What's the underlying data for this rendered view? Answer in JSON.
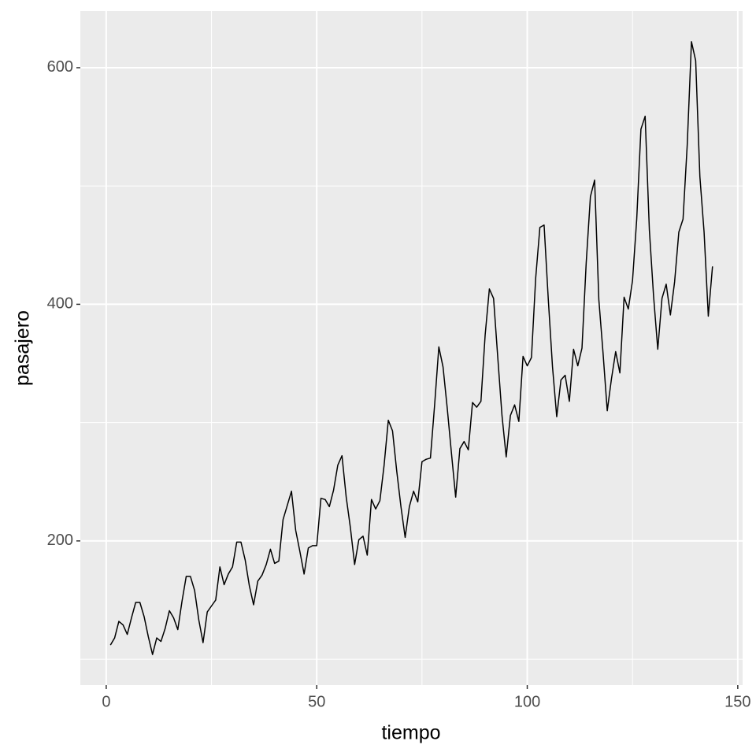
{
  "chart_data": {
    "type": "line",
    "x_label": "tiempo",
    "y_label": "pasajero",
    "x": [
      1,
      2,
      3,
      4,
      5,
      6,
      7,
      8,
      9,
      10,
      11,
      12,
      13,
      14,
      15,
      16,
      17,
      18,
      19,
      20,
      21,
      22,
      23,
      24,
      25,
      26,
      27,
      28,
      29,
      30,
      31,
      32,
      33,
      34,
      35,
      36,
      37,
      38,
      39,
      40,
      41,
      42,
      43,
      44,
      45,
      46,
      47,
      48,
      49,
      50,
      51,
      52,
      53,
      54,
      55,
      56,
      57,
      58,
      59,
      60,
      61,
      62,
      63,
      64,
      65,
      66,
      67,
      68,
      69,
      70,
      71,
      72,
      73,
      74,
      75,
      76,
      77,
      78,
      79,
      80,
      81,
      82,
      83,
      84,
      85,
      86,
      87,
      88,
      89,
      90,
      91,
      92,
      93,
      94,
      95,
      96,
      97,
      98,
      99,
      100,
      101,
      102,
      103,
      104,
      105,
      106,
      107,
      108,
      109,
      110,
      111,
      112,
      113,
      114,
      115,
      116,
      117,
      118,
      119,
      120,
      121,
      122,
      123,
      124,
      125,
      126,
      127,
      128,
      129,
      130,
      131,
      132,
      133,
      134,
      135,
      136,
      137,
      138,
      139,
      140,
      141,
      142,
      143,
      144
    ],
    "values": [
      112,
      118,
      132,
      129,
      121,
      135,
      148,
      148,
      136,
      119,
      104,
      118,
      115,
      126,
      141,
      135,
      125,
      149,
      170,
      170,
      158,
      133,
      114,
      140,
      145,
      150,
      178,
      163,
      172,
      178,
      199,
      199,
      184,
      162,
      146,
      166,
      171,
      180,
      193,
      181,
      183,
      218,
      230,
      242,
      209,
      191,
      172,
      194,
      196,
      196,
      236,
      235,
      229,
      243,
      264,
      272,
      237,
      211,
      180,
      201,
      204,
      188,
      235,
      227,
      234,
      264,
      302,
      293,
      259,
      229,
      203,
      229,
      242,
      233,
      267,
      269,
      270,
      315,
      364,
      347,
      312,
      274,
      237,
      278,
      284,
      277,
      317,
      313,
      318,
      374,
      413,
      405,
      355,
      306,
      271,
      306,
      315,
      301,
      356,
      348,
      355,
      422,
      465,
      467,
      404,
      347,
      305,
      336,
      340,
      318,
      362,
      348,
      363,
      435,
      491,
      505,
      404,
      359,
      310,
      337,
      360,
      342,
      406,
      396,
      420,
      472,
      548,
      559,
      463,
      407,
      362,
      405,
      417,
      391,
      419,
      461,
      472,
      535,
      622,
      606,
      508,
      461,
      390,
      432
    ],
    "color": "#000000",
    "xlim": [
      -6.15,
      151.15
    ],
    "ylim": [
      78.1,
      647.9
    ],
    "xticks": [
      0,
      50,
      100,
      150
    ],
    "yticks": [
      200,
      400,
      600
    ],
    "xticks_minor": [
      25,
      75,
      125
    ],
    "yticks_minor": [
      100,
      300,
      500
    ],
    "grid": true
  }
}
